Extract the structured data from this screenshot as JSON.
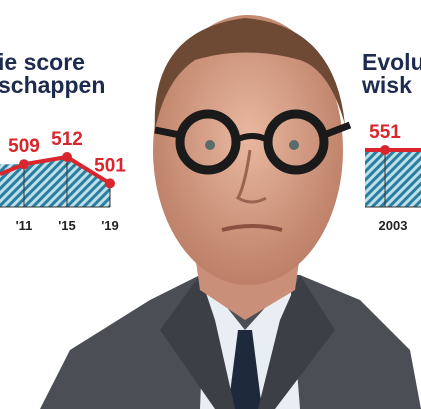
{
  "chart_data": [
    {
      "type": "line",
      "title": [
        "ie score",
        "schappen"
      ],
      "categories": [
        "'11",
        "'15",
        "'19"
      ],
      "values": [
        509,
        512,
        501
      ],
      "color": "#d8262c",
      "area_color": "#2a7fa0"
    },
    {
      "type": "line",
      "title": [
        "Evolu",
        "wisk"
      ],
      "categories": [
        "2003"
      ],
      "values": [
        551
      ],
      "color": "#d8262c",
      "area_color": "#2a7fa0"
    }
  ]
}
